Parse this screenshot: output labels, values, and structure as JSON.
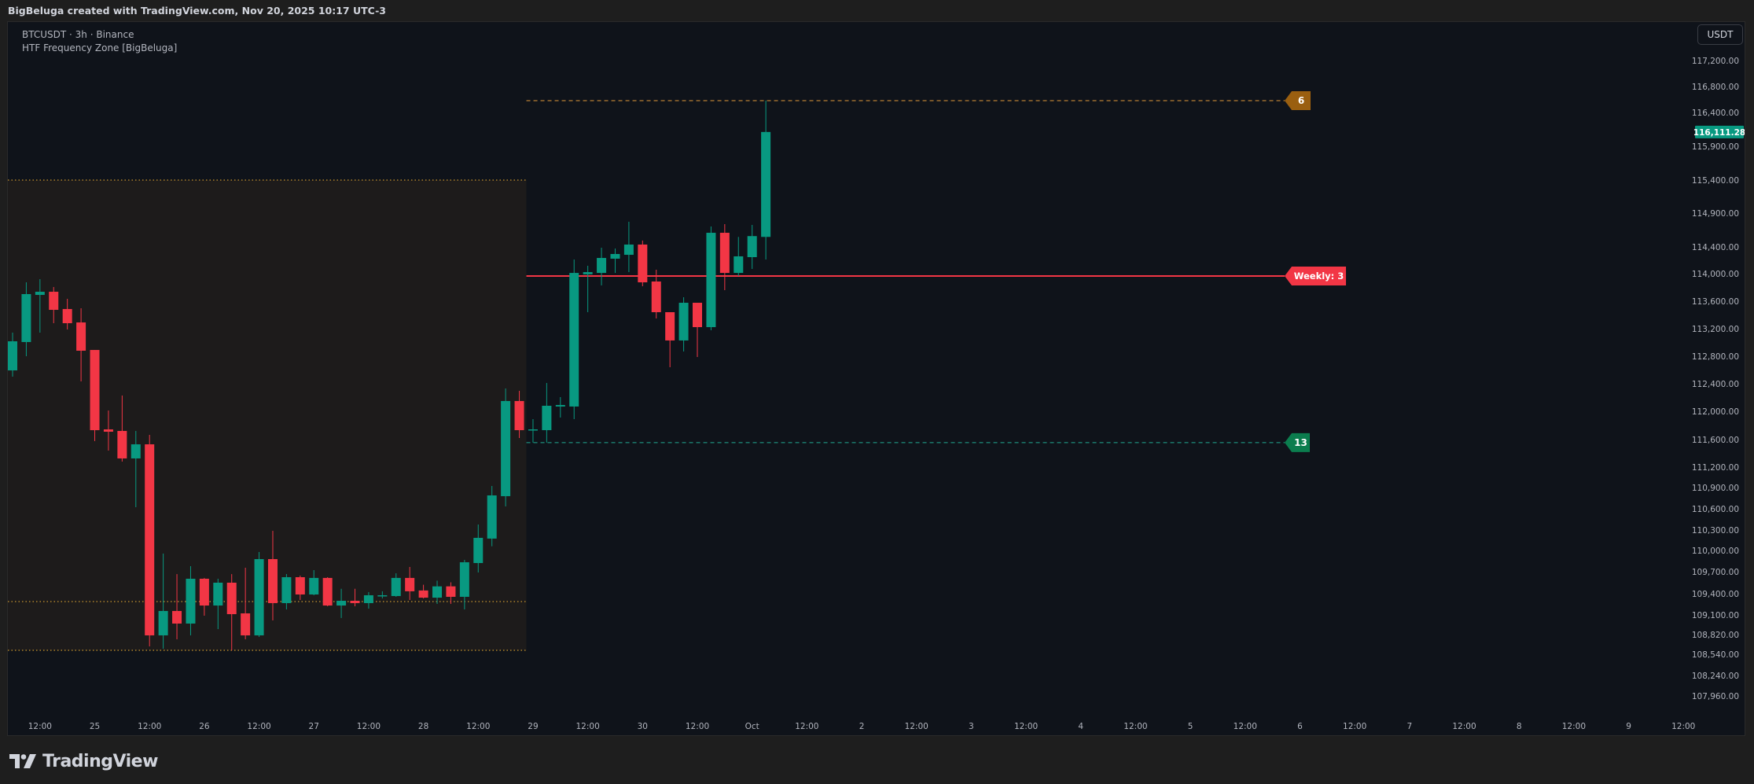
{
  "header": {
    "attribution": "BigBeluga created with TradingView.com, Nov 20, 2025 10:17 UTC-3"
  },
  "legend": {
    "symbol_line": "BTCUSDT · 3h · Binance",
    "indicator": "HTF Frequency Zone [BigBeluga]"
  },
  "price_axis": {
    "currency_button": "USDT"
  },
  "footer": {
    "brand": "TradingView",
    "logo_icon": "tradingview-logo-icon"
  },
  "colors": {
    "up": "#089981",
    "down": "#f23645",
    "background": "#0f131a",
    "zone_fill": "#1d1b1b",
    "zone_line": "#c8952f",
    "level_high": "#e09a3a",
    "level_low": "#22ab94",
    "tag_high": "#9a5f10",
    "tag_low": "#0b7d4e"
  },
  "chart_data": {
    "type": "candlestick",
    "symbol": "BTCUSDT",
    "interval": "3h",
    "exchange": "Binance",
    "y_ticks": [
      "117,200.00",
      "116,800.00",
      "116,400.00",
      "115,900.00",
      "115,400.00",
      "114,900.00",
      "114,400.00",
      "114,000.00",
      "113,600.00",
      "113,200.00",
      "112,800.00",
      "112,400.00",
      "112,000.00",
      "111,600.00",
      "111,200.00",
      "110,900.00",
      "110,600.00",
      "110,300.00",
      "110,000.00",
      "109,700.00",
      "109,400.00",
      "109,100.00",
      "108,820.00",
      "108,540.00",
      "108,240.00",
      "107,960.00"
    ],
    "x_ticks": [
      "12:00",
      "25",
      "12:00",
      "26",
      "12:00",
      "27",
      "12:00",
      "28",
      "12:00",
      "29",
      "12:00",
      "30",
      "12:00",
      "Oct",
      "12:00",
      "2",
      "12:00",
      "3",
      "12:00",
      "4",
      "12:00",
      "5",
      "12:00",
      "6",
      "12:00",
      "7",
      "12:00",
      "8",
      "12:00",
      "9",
      "12:00"
    ],
    "last_price": "116,111.28",
    "columns": [
      "time",
      "open",
      "high",
      "low",
      "close"
    ],
    "candles": [
      [
        "2025-09-24 06:00",
        112594,
        113143,
        112503,
        113017
      ],
      [
        "2025-09-24 09:00",
        113006,
        113874,
        112800,
        113703
      ],
      [
        "2025-09-24 12:00",
        113691,
        113920,
        113143,
        113737
      ],
      [
        "2025-09-24 15:00",
        113737,
        113806,
        113280,
        113474
      ],
      [
        "2025-09-24 18:00",
        113486,
        113634,
        113189,
        113280
      ],
      [
        "2025-09-24 21:00",
        113291,
        113497,
        112434,
        112880
      ],
      [
        "2025-09-25 00:00",
        112891,
        112891,
        111578,
        111733
      ],
      [
        "2025-09-25 03:00",
        111744,
        112011,
        111440,
        111711
      ],
      [
        "2025-09-25 06:00",
        111722,
        112229,
        111280,
        111326
      ],
      [
        "2025-09-25 09:00",
        111326,
        111722,
        110622,
        111531
      ],
      [
        "2025-09-25 12:00",
        111531,
        111667,
        108652,
        108809
      ],
      [
        "2025-09-25 15:00",
        108809,
        109956,
        108619,
        109156
      ],
      [
        "2025-09-25 18:00",
        109156,
        109667,
        108753,
        108977
      ],
      [
        "2025-09-25 21:00",
        108977,
        109778,
        108809,
        109604
      ],
      [
        "2025-09-26 00:00",
        109604,
        109615,
        109089,
        109233
      ],
      [
        "2025-09-26 03:00",
        109233,
        109604,
        108898,
        109550
      ],
      [
        "2025-09-26 06:00",
        109550,
        109667,
        108596,
        109111
      ],
      [
        "2025-09-26 09:00",
        109122,
        109756,
        108753,
        108809
      ],
      [
        "2025-09-26 12:00",
        108809,
        109978,
        108787,
        109878
      ],
      [
        "2025-09-26 15:00",
        109878,
        110288,
        109022,
        109267
      ],
      [
        "2025-09-26 18:00",
        109267,
        109668,
        109178,
        109625
      ],
      [
        "2025-09-26 21:00",
        109625,
        109647,
        109311,
        109389
      ],
      [
        "2025-09-27 00:00",
        109389,
        109722,
        109378,
        109615
      ],
      [
        "2025-09-27 03:00",
        109615,
        109625,
        109222,
        109233
      ],
      [
        "2025-09-27 06:00",
        109233,
        109467,
        109056,
        109300
      ],
      [
        "2025-09-27 09:00",
        109300,
        109467,
        109222,
        109267
      ],
      [
        "2025-09-27 12:00",
        109267,
        109422,
        109189,
        109378
      ],
      [
        "2025-09-27 15:00",
        109367,
        109433,
        109333,
        109378
      ],
      [
        "2025-09-27 18:00",
        109367,
        109678,
        109356,
        109615
      ],
      [
        "2025-09-27 21:00",
        109615,
        109767,
        109311,
        109433
      ],
      [
        "2025-09-28 00:00",
        109444,
        109522,
        109333,
        109344
      ],
      [
        "2025-09-28 03:00",
        109344,
        109578,
        109256,
        109500
      ],
      [
        "2025-09-28 06:00",
        109500,
        109555,
        109256,
        109356
      ],
      [
        "2025-09-28 09:00",
        109356,
        109867,
        109178,
        109833
      ],
      [
        "2025-09-28 12:00",
        109822,
        110378,
        109689,
        110185
      ],
      [
        "2025-09-28 15:00",
        110174,
        110923,
        110061,
        110789
      ],
      [
        "2025-09-28 18:00",
        110778,
        112331,
        110633,
        112149
      ],
      [
        "2025-09-28 21:00",
        112149,
        112297,
        111622,
        111733
      ],
      [
        "2025-09-29 00:00",
        111733,
        111889,
        111556,
        111744
      ],
      [
        "2025-09-29 03:00",
        111733,
        112411,
        111556,
        112080
      ],
      [
        "2025-09-29 06:00",
        112069,
        112206,
        111911,
        112091
      ],
      [
        "2025-09-29 09:00",
        112069,
        114212,
        111889,
        114011
      ],
      [
        "2025-09-29 12:00",
        113990,
        114118,
        113440,
        114023
      ],
      [
        "2025-09-29 15:00",
        114011,
        114388,
        113829,
        114235
      ],
      [
        "2025-09-29 18:00",
        114224,
        114376,
        114011,
        114294
      ],
      [
        "2025-09-29 21:00",
        114282,
        114772,
        114023,
        114435
      ],
      [
        "2025-09-30 00:00",
        114435,
        114494,
        113817,
        113874
      ],
      [
        "2025-09-30 03:00",
        113886,
        114059,
        113349,
        113440
      ],
      [
        "2025-09-30 06:00",
        113440,
        113440,
        112640,
        113029
      ],
      [
        "2025-09-30 09:00",
        113029,
        113657,
        112869,
        113577
      ],
      [
        "2025-09-30 12:00",
        113577,
        113577,
        112789,
        113223
      ],
      [
        "2025-09-30 15:00",
        113223,
        114702,
        113177,
        114609
      ],
      [
        "2025-09-30 18:00",
        114609,
        114737,
        113760,
        114011
      ],
      [
        "2025-09-30 21:00",
        114011,
        114548,
        113966,
        114259
      ],
      [
        "2025-10-01 00:00",
        114247,
        114725,
        114071,
        114560
      ],
      [
        "2025-10-01 03:00",
        114548,
        116582,
        114212,
        116111.28
      ]
    ],
    "zone": {
      "top": 115400,
      "mid": 109289,
      "bottom": 108596,
      "end_time": "2025-09-28 21:00"
    },
    "levels": [
      {
        "price": 116582,
        "label": "6",
        "style": "dashed",
        "kind": "high"
      },
      {
        "price": 113966,
        "label": "Weekly: 3",
        "style": "solid",
        "kind": "weekly"
      },
      {
        "price": 111556,
        "label": "13",
        "style": "dashed",
        "kind": "low"
      }
    ]
  }
}
